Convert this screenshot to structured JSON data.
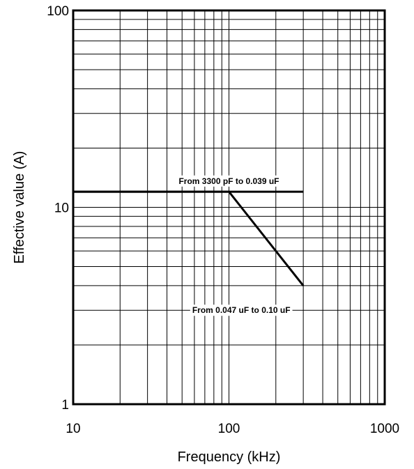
{
  "chart_data": {
    "type": "line",
    "xlabel": "Frequency (kHz)",
    "ylabel": "Effective value (A)",
    "xscale": "log",
    "yscale": "log",
    "xlim": [
      10,
      1000
    ],
    "ylim": [
      1,
      100
    ],
    "grid": true,
    "x_tick_labels": [
      "10",
      "100",
      "1000"
    ],
    "y_tick_labels": [
      "1",
      "10",
      "100"
    ],
    "series": [
      {
        "name": "From 3300 pF to 0.039 uF",
        "x": [
          10,
          300
        ],
        "y": [
          12,
          12
        ]
      },
      {
        "name": "From 0.047 uF to 0.10 uF",
        "x": [
          10,
          100,
          300
        ],
        "y": [
          12,
          12,
          4
        ]
      }
    ],
    "annotations": [
      "From 3300 pF to 0.039 uF",
      "From 0.047 uF to 0.10 uF"
    ]
  }
}
